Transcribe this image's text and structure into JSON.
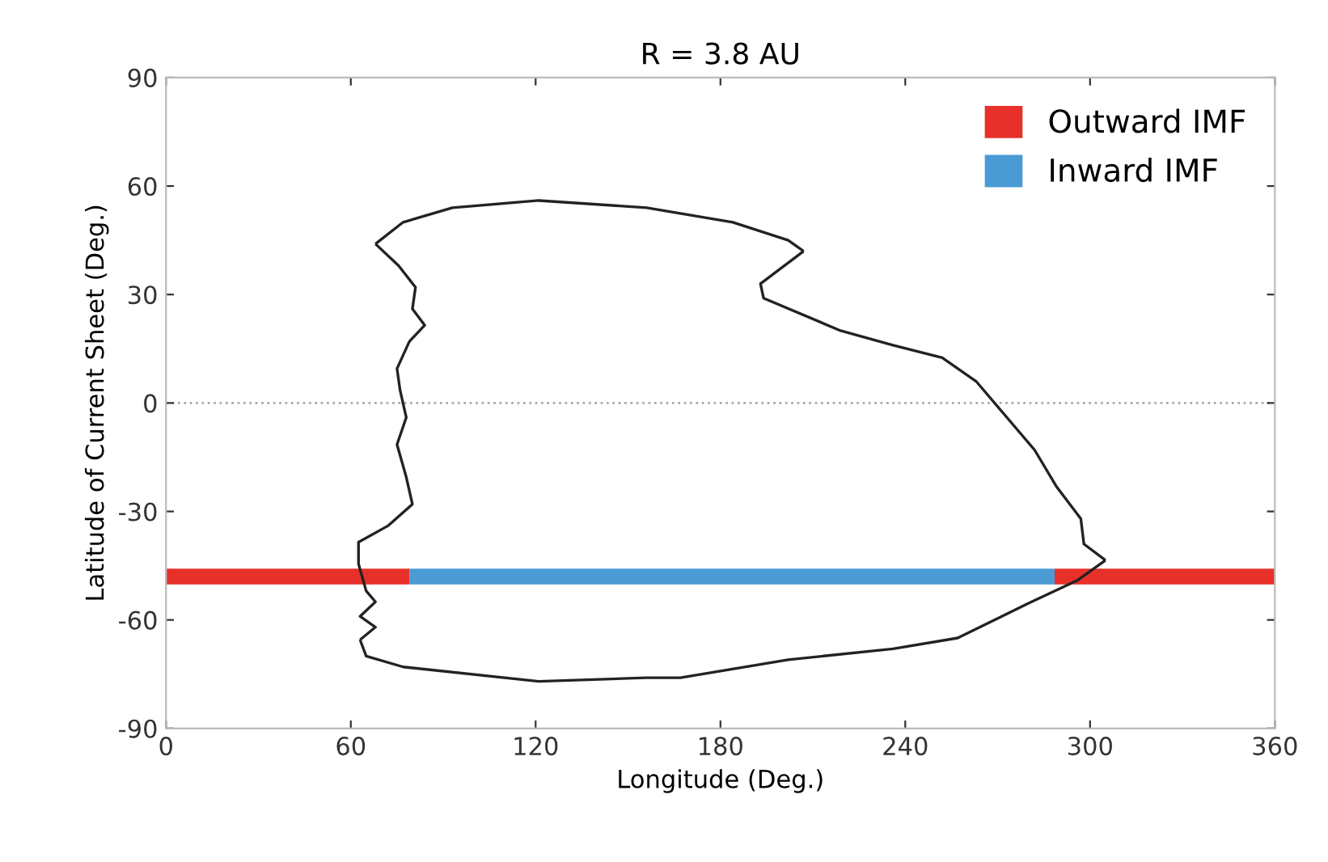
{
  "chart_data": {
    "type": "line",
    "title": "R = 3.8 AU",
    "xlabel": "Longitude (Deg.)",
    "ylabel": "Latitude of Current Sheet (Deg.)",
    "xlim": [
      0,
      360
    ],
    "xticks": [
      0,
      60,
      120,
      180,
      240,
      300,
      360
    ],
    "ylim": [
      -90,
      90
    ],
    "yticks": [
      -90,
      -60,
      -30,
      0,
      30,
      60,
      90
    ],
    "grid": false,
    "legend": "top right",
    "marker": "none",
    "line_style": "solid",
    "ref_lines": [
      {
        "axis": "y",
        "value": 0,
        "color": "#aaaaaa",
        "line_style": "dotted"
      }
    ],
    "series": [
      {
        "color": "#222222",
        "x": [
          68,
          77,
          93,
          121,
          156,
          184,
          202,
          207
        ],
        "values": [
          44,
          50,
          54,
          56,
          54,
          50,
          45,
          42
        ]
      },
      {
        "color": "#222222",
        "x": [
          207,
          193,
          194,
          219,
          236,
          252,
          263,
          272,
          282,
          289,
          297,
          298,
          305
        ],
        "values": [
          42,
          33,
          29,
          20,
          16,
          12.5,
          6,
          -3,
          -13,
          -23,
          -32,
          -39,
          -43.5
        ]
      },
      {
        "color": "#222222",
        "x": [
          305,
          296,
          281,
          257,
          236,
          202,
          167,
          156,
          121,
          77,
          65,
          63
        ],
        "values": [
          -43.5,
          -49,
          -55,
          -65,
          -68,
          -71,
          -76,
          -76,
          -77,
          -73,
          -70,
          -65.5
        ]
      },
      {
        "color": "#222222",
        "x": [
          63,
          68,
          63,
          68,
          65,
          62.5,
          62.5,
          72,
          80,
          78,
          75,
          78,
          76,
          75,
          79,
          84,
          80,
          81,
          75.5,
          68
        ],
        "values": [
          -65.5,
          -62,
          -59,
          -55,
          -52,
          -44.5,
          -38.5,
          -34,
          -28,
          -20.5,
          -11.5,
          -4,
          3.5,
          9.5,
          17,
          21.5,
          26,
          32,
          38,
          44
        ]
      },
      {
        "name": "Outward IMF",
        "color": "#e8302a",
        "x": [
          0,
          79
        ],
        "values": [
          -48,
          -48
        ]
      },
      {
        "color": "#e8302a",
        "x": [
          288.5,
          360
        ],
        "values": [
          -48,
          -48
        ]
      },
      {
        "name": "Inward IMF",
        "color": "#4a9ad4",
        "x": [
          79,
          288.5
        ],
        "values": [
          -48,
          -48
        ]
      }
    ]
  }
}
